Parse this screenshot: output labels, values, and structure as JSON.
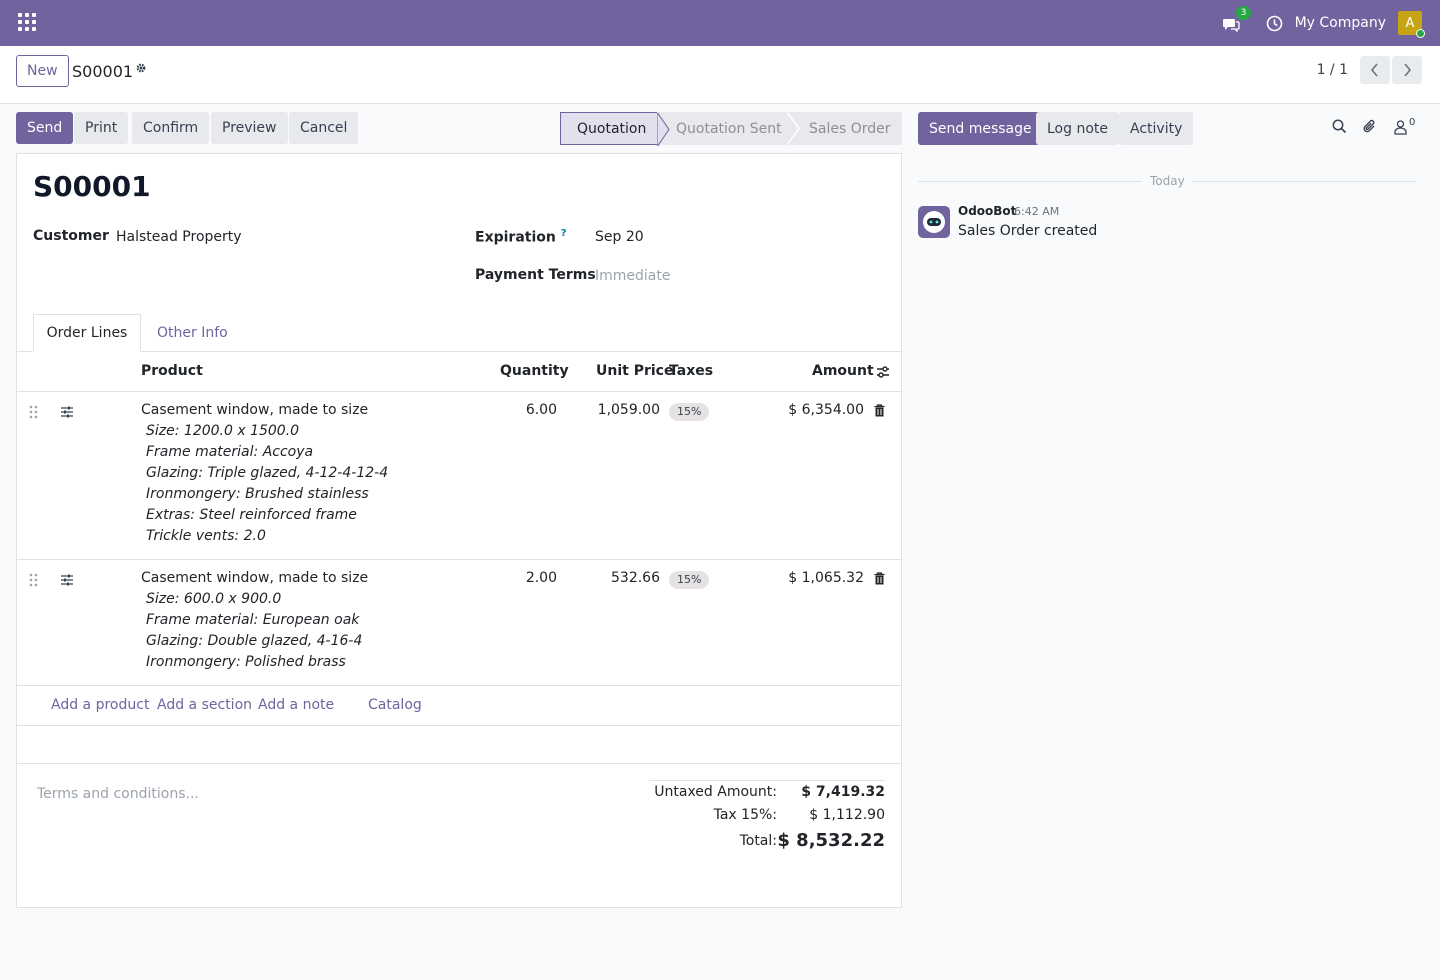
{
  "navbar": {
    "chat_count": "3",
    "company": "My Company",
    "avatar_letter": "A"
  },
  "control_panel": {
    "new_label": "New",
    "record_name": "S00001",
    "pager": "1 / 1"
  },
  "actions": {
    "send": "Send",
    "print": "Print",
    "confirm": "Confirm",
    "preview": "Preview",
    "cancel": "Cancel"
  },
  "statusbar": {
    "stages": [
      "Quotation",
      "Quotation Sent",
      "Sales Order"
    ],
    "active": "Quotation"
  },
  "form": {
    "title": "S00001",
    "customer_label": "Customer",
    "customer": "Halstead Property",
    "expiration_label": "Expiration",
    "expiration_help": "?",
    "expiration": "Sep 20",
    "payment_terms_label": "Payment Terms",
    "payment_terms_placeholder": "Immediate",
    "tabs": [
      "Order Lines",
      "Other Info"
    ],
    "columns": {
      "product": "Product",
      "quantity": "Quantity",
      "unit_price": "Unit Price",
      "taxes": "Taxes",
      "amount": "Amount"
    },
    "lines": [
      {
        "product": "Casement window, made to size",
        "desc": [
          "Size: 1200.0 x 1500.0",
          "Frame material: Accoya",
          "Glazing: Triple glazed, 4-12-4-12-4",
          "Ironmongery: Brushed stainless",
          "Extras: Steel reinforced frame",
          "Trickle vents: 2.0"
        ],
        "quantity": "6.00",
        "unit_price": "1,059.00",
        "tax": "15%",
        "amount": "$ 6,354.00"
      },
      {
        "product": "Casement window, made to size",
        "desc": [
          "Size: 600.0 x 900.0",
          "Frame material: European oak",
          "Glazing: Double glazed, 4-16-4",
          "Ironmongery: Polished brass"
        ],
        "quantity": "2.00",
        "unit_price": "532.66",
        "tax": "15%",
        "amount": "$ 1,065.32"
      }
    ],
    "add_links": {
      "product": "Add a product",
      "section": "Add a section",
      "note": "Add a note",
      "catalog": "Catalog"
    },
    "terms_placeholder": "Terms and conditions...",
    "totals": {
      "untaxed_label": "Untaxed Amount:",
      "untaxed": "$ 7,419.32",
      "tax_label": "Tax 15%:",
      "tax": "$ 1,112.90",
      "total_label": "Total:",
      "total": "$ 8,532.22"
    }
  },
  "chatter": {
    "send_message": "Send message",
    "log_note": "Log note",
    "activity": "Activity",
    "followers_count": "0",
    "date_separator": "Today",
    "messages": [
      {
        "author": "OdooBot",
        "time": "6:42 AM",
        "body": "Sales Order created"
      }
    ]
  },
  "colors": {
    "brand": "#71639e",
    "success": "#28a745",
    "avatar": "#c7a316"
  }
}
